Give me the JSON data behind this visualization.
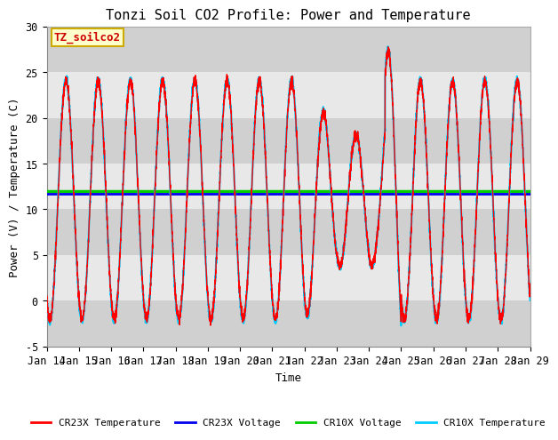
{
  "title": "Tonzi Soil CO2 Profile: Power and Temperature",
  "xlabel": "Time",
  "ylabel": "Power (V) / Temperature (C)",
  "ylim": [
    -5,
    30
  ],
  "xlim": [
    0,
    15
  ],
  "x_tick_labels": [
    "Jan 14",
    "Jan 15",
    "Jan 16",
    "Jan 17",
    "Jan 18",
    "Jan 19",
    "Jan 20",
    "Jan 21",
    "Jan 22",
    "Jan 23",
    "Jan 24",
    "Jan 25",
    "Jan 26",
    "Jan 27",
    "Jan 28",
    "Jan 29"
  ],
  "x_ticks": [
    0,
    1,
    2,
    3,
    4,
    5,
    6,
    7,
    8,
    9,
    10,
    11,
    12,
    13,
    14,
    15
  ],
  "yticks": [
    -5,
    0,
    5,
    10,
    15,
    20,
    25,
    30
  ],
  "cr23x_voltage": 11.7,
  "cr10x_voltage": 12.0,
  "legend": [
    "CR23X Temperature",
    "CR23X Voltage",
    "CR10X Voltage",
    "CR10X Temperature"
  ],
  "legend_colors": [
    "#ff0000",
    "#0000ee",
    "#00cc00",
    "#00ccff"
  ],
  "box_label": "TZ_soilco2",
  "box_bg": "#ffffcc",
  "box_border": "#ccaa00",
  "bg_color": "#ffffff",
  "plot_bg_light": "#e8e8e8",
  "plot_bg_dark": "#d0d0d0",
  "title_fontsize": 11,
  "axis_fontsize": 9,
  "tick_fontsize": 8.5
}
